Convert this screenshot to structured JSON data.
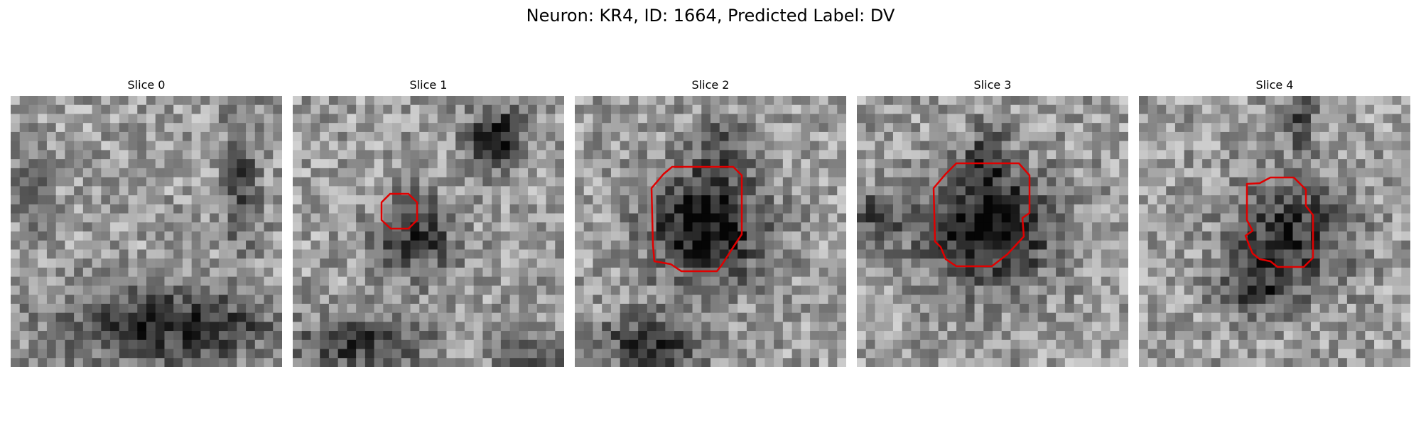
{
  "figure": {
    "title": "Neuron: KR4, ID: 1664, Predicted Label: DV"
  },
  "grid": {
    "cells_per_side": 30
  },
  "slices": [
    {
      "title": "Slice 0",
      "has_contour": false,
      "contour_color": "#e00000"
    },
    {
      "title": "Slice 1",
      "has_contour": true,
      "contour_color": "#e00000"
    },
    {
      "title": "Slice 2",
      "has_contour": true,
      "contour_color": "#e00000"
    },
    {
      "title": "Slice 3",
      "has_contour": true,
      "contour_color": "#e00000"
    },
    {
      "title": "Slice 4",
      "has_contour": true,
      "contour_color": "#e00000"
    }
  ]
}
